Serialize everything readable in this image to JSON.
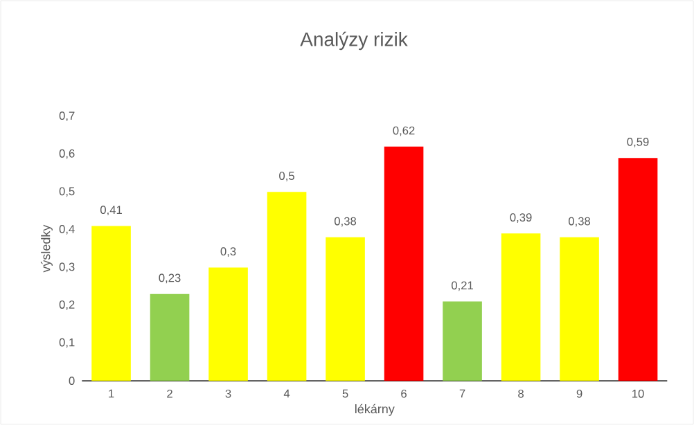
{
  "chart_data": {
    "type": "bar",
    "title": "Analýzy rizik",
    "xlabel": "lékárny",
    "ylabel": "výsledky",
    "categories": [
      "1",
      "2",
      "3",
      "4",
      "5",
      "6",
      "7",
      "8",
      "9",
      "10"
    ],
    "values": [
      0.41,
      0.23,
      0.3,
      0.5,
      0.38,
      0.62,
      0.21,
      0.39,
      0.38,
      0.59
    ],
    "value_labels": [
      "0,41",
      "0,23",
      "0,3",
      "0,5",
      "0,38",
      "0,62",
      "0,21",
      "0,39",
      "0,38",
      "0,59"
    ],
    "colors": [
      "#ffff00",
      "#92d050",
      "#ffff00",
      "#ffff00",
      "#ffff00",
      "#ff0000",
      "#92d050",
      "#ffff00",
      "#ffff00",
      "#ff0000"
    ],
    "ylim": [
      0,
      0.7
    ],
    "yticks": [
      0,
      {
        "value": 0.1,
        "label": "0,1"
      },
      {
        "value": 0.2,
        "label": "0,2"
      },
      {
        "value": 0.3,
        "label": "0,3"
      },
      {
        "value": 0.4,
        "label": "0,4"
      },
      {
        "value": 0.5,
        "label": "0,5"
      },
      {
        "value": 0.6,
        "label": "0,6"
      },
      {
        "value": 0.7,
        "label": "0,7"
      }
    ]
  }
}
